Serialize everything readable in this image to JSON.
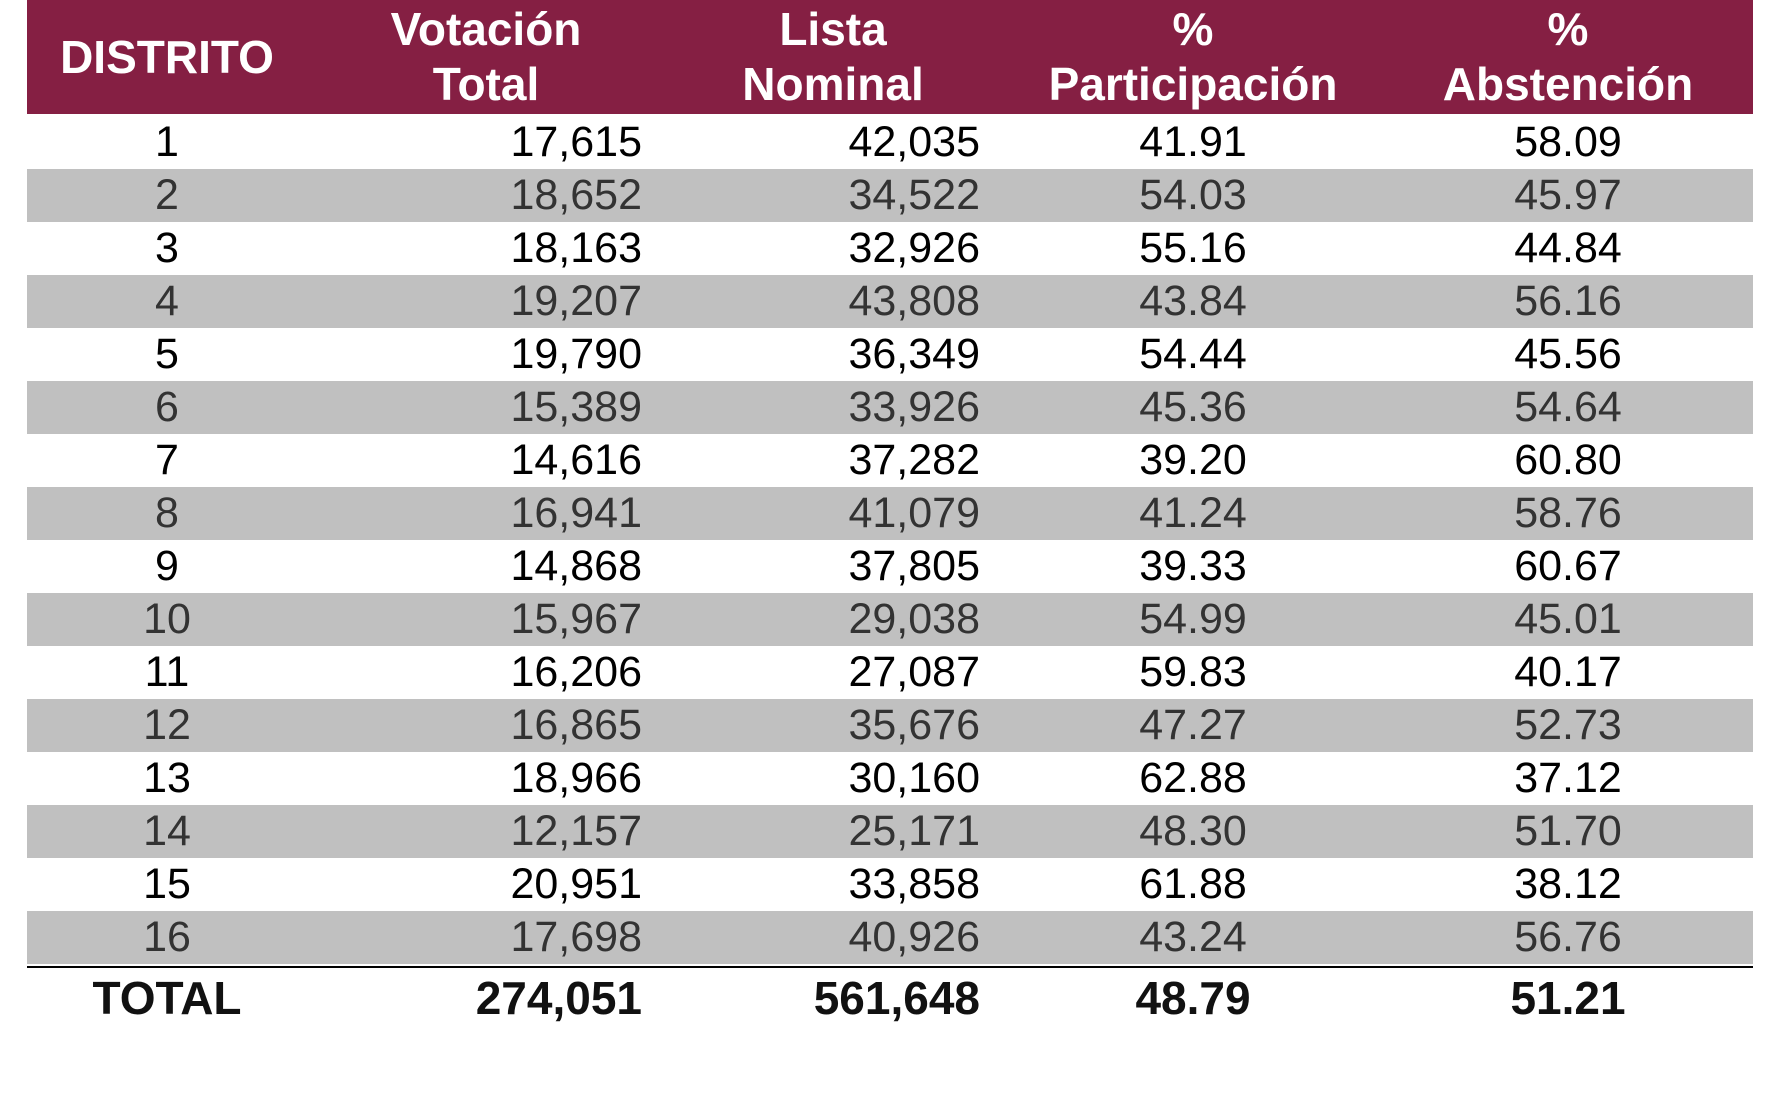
{
  "table": {
    "header": [
      "DISTRITO",
      "Votación\nTotal",
      "Lista\nNominal",
      "%\nParticipación",
      "%\nAbstención"
    ],
    "rows": [
      [
        "1",
        "17,615",
        "42,035",
        "41.91",
        "58.09"
      ],
      [
        "2",
        "18,652",
        "34,522",
        "54.03",
        "45.97"
      ],
      [
        "3",
        "18,163",
        "32,926",
        "55.16",
        "44.84"
      ],
      [
        "4",
        "19,207",
        "43,808",
        "43.84",
        "56.16"
      ],
      [
        "5",
        "19,790",
        "36,349",
        "54.44",
        "45.56"
      ],
      [
        "6",
        "15,389",
        "33,926",
        "45.36",
        "54.64"
      ],
      [
        "7",
        "14,616",
        "37,282",
        "39.20",
        "60.80"
      ],
      [
        "8",
        "16,941",
        "41,079",
        "41.24",
        "58.76"
      ],
      [
        "9",
        "14,868",
        "37,805",
        "39.33",
        "60.67"
      ],
      [
        "10",
        "15,967",
        "29,038",
        "54.99",
        "45.01"
      ],
      [
        "11",
        "16,206",
        "27,087",
        "59.83",
        "40.17"
      ],
      [
        "12",
        "16,865",
        "35,676",
        "47.27",
        "52.73"
      ],
      [
        "13",
        "18,966",
        "30,160",
        "62.88",
        "37.12"
      ],
      [
        "14",
        "12,157",
        "25,171",
        "48.30",
        "51.70"
      ],
      [
        "15",
        "20,951",
        "33,858",
        "61.88",
        "38.12"
      ],
      [
        "16",
        "17,698",
        "40,926",
        "43.24",
        "56.76"
      ]
    ],
    "total": [
      "TOTAL",
      "274,051",
      "561,648",
      "48.79",
      "51.21"
    ]
  }
}
